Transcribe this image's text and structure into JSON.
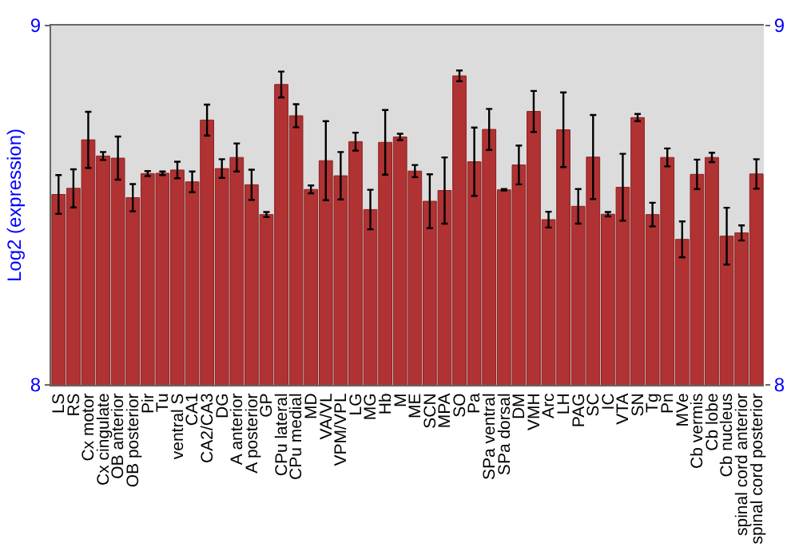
{
  "chart_data": {
    "type": "bar",
    "ylabel": "Log2 (expression)",
    "categories": [
      "LS",
      "RS",
      "Cx motor",
      "Cx cingulate",
      "OB anterior",
      "OB posterior",
      "Pir",
      "Tu",
      "ventral S",
      "CA1",
      "CA2/CA3",
      "DG",
      "A anterior",
      "A posterior",
      "GP",
      "CPu lateral",
      "CPu medial",
      "MD",
      "VA/VL",
      "VPM/VPL",
      "LG",
      "MG",
      "Hb",
      "M",
      "ME",
      "SCN",
      "MPA",
      "SO",
      "Pa",
      "SPa ventral",
      "SPa dorsal",
      "DM",
      "VMH",
      "Arc",
      "LH",
      "PAG",
      "SC",
      "IC",
      "VTA",
      "SN",
      "Tg",
      "Pn",
      "MVe",
      "Cb vermis",
      "Cb lobe",
      "Cb nucleus",
      "spinal cord anterior",
      "spinal cord posterior"
    ],
    "values": [
      8.53,
      8.547,
      8.682,
      8.637,
      8.631,
      8.521,
      8.588,
      8.589,
      8.598,
      8.565,
      8.737,
      8.602,
      8.633,
      8.557,
      8.474,
      8.836,
      8.749,
      8.544,
      8.624,
      8.582,
      8.677,
      8.488,
      8.675,
      8.69,
      8.595,
      8.511,
      8.541,
      8.86,
      8.621,
      8.711,
      8.543,
      8.612,
      8.761,
      8.46,
      8.71,
      8.497,
      8.634,
      8.475,
      8.55,
      8.744,
      8.474,
      8.633,
      8.405,
      8.586,
      8.633,
      8.414,
      8.423,
      8.587
    ],
    "errors": [
      0.054,
      0.053,
      0.078,
      0.011,
      0.06,
      0.038,
      0.007,
      0.005,
      0.023,
      0.029,
      0.043,
      0.026,
      0.039,
      0.042,
      0.007,
      0.036,
      0.032,
      0.011,
      0.11,
      0.066,
      0.025,
      0.055,
      0.09,
      0.009,
      0.017,
      0.075,
      0.092,
      0.015,
      0.095,
      0.057,
      0.002,
      0.054,
      0.057,
      0.022,
      0.104,
      0.048,
      0.117,
      0.006,
      0.093,
      0.01,
      0.033,
      0.025,
      0.05,
      0.041,
      0.013,
      0.079,
      0.021,
      0.041
    ],
    "color": "#b03232",
    "ylim": [
      8,
      9
    ],
    "yticks": [
      8,
      9
    ],
    "y2lim": [
      8,
      9
    ],
    "y2ticks": [
      8,
      9
    ],
    "grid": false,
    "legend": false
  }
}
